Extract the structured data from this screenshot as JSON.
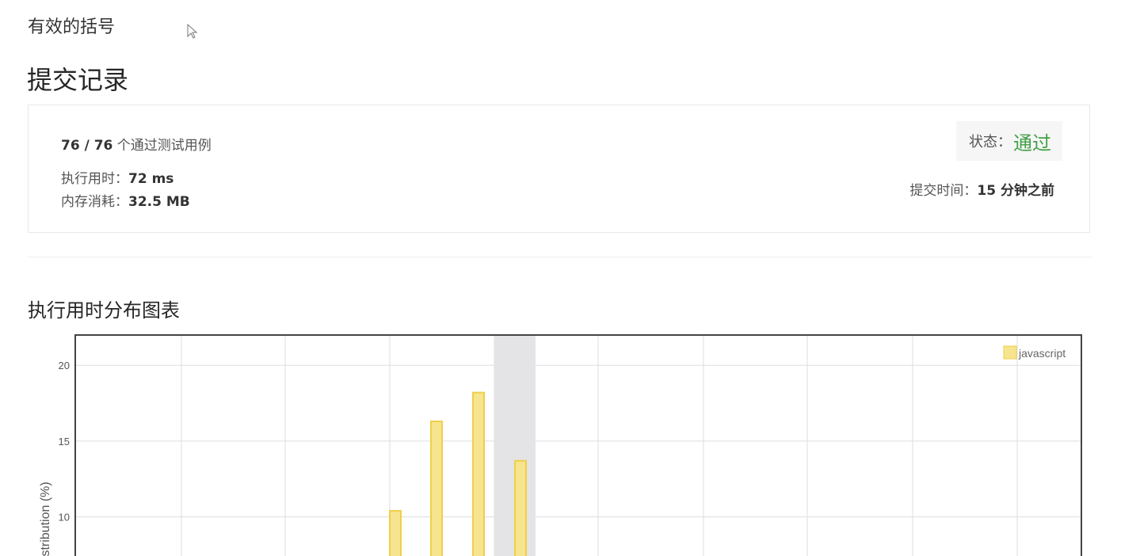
{
  "problem": {
    "title": "有效的括号"
  },
  "section": {
    "title": "提交记录"
  },
  "submission": {
    "passed": "76 / 76",
    "passed_suffix": "个通过测试用例",
    "runtime_label": "执行用时：",
    "runtime_value": "72 ms",
    "memory_label": "内存消耗：",
    "memory_value": "32.5 MB",
    "status_label": "状态：",
    "status_value": "通过",
    "submit_time_label": "提交时间：",
    "submit_time_value": "15 分钟之前"
  },
  "colors": {
    "accepted": "#43a047",
    "bar_fill": "#f7e48e",
    "bar_stroke": "#f0cf4a",
    "highlight": "#e4e4e6"
  },
  "chart_data": {
    "type": "bar",
    "title": "执行用时分布图表",
    "ylabel": "distribution (%)",
    "ylim": [
      0,
      22
    ],
    "yticks": [
      10,
      15,
      20
    ],
    "x": [
      0,
      1,
      2,
      3
    ],
    "highlight_x": 3,
    "series": [
      {
        "name": "javascript",
        "values": [
          10.4,
          16.3,
          18.2,
          13.7
        ]
      }
    ],
    "legend": "top-right",
    "grid": true
  }
}
